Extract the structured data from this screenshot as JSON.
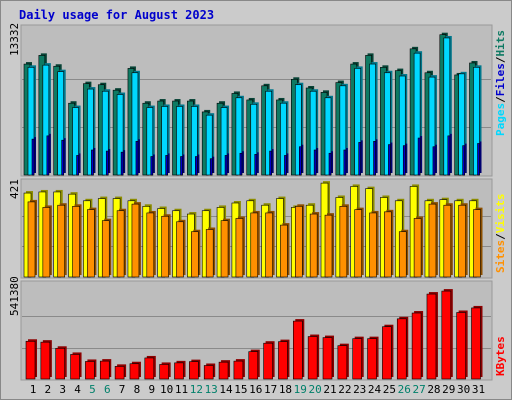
{
  "title": "Daily usage for August 2023",
  "colors": {
    "background": "#cbcbcb",
    "panel": "#bdbdbd",
    "title": "#0000cc",
    "hits": "#0e7a63",
    "files": "#00d8ff",
    "pages": "#0000cc",
    "visits": "#ffff00",
    "sites": "#ff9000",
    "kbytes": "#ff0000",
    "weekend_label": "#00806a",
    "weekday_label": "#000000"
  },
  "chart_data": [
    {
      "type": "bar",
      "panel": "hits-files-pages",
      "ytick_label": "13332",
      "ylim": [
        0,
        13332
      ],
      "legend": [
        "Pages",
        "/",
        "Files",
        "/",
        "Hits"
      ],
      "categories": [
        "1",
        "2",
        "3",
        "4",
        "5",
        "6",
        "7",
        "8",
        "9",
        "10",
        "11",
        "12",
        "13",
        "14",
        "15",
        "16",
        "17",
        "18",
        "19",
        "20",
        "21",
        "22",
        "23",
        "24",
        "25",
        "26",
        "27",
        "28",
        "29",
        "30",
        "31"
      ],
      "weekend_days": [
        5,
        6,
        12,
        13,
        19,
        20,
        26,
        27
      ],
      "series": [
        {
          "name": "Hits",
          "values": [
            10200,
            11000,
            10000,
            6600,
            8400,
            8300,
            7800,
            9800,
            6600,
            6800,
            6800,
            6800,
            5800,
            6600,
            7500,
            6900,
            8200,
            6900,
            8800,
            8000,
            7600,
            8500,
            10200,
            11000,
            9900,
            9600,
            11600,
            9400,
            12900,
            9200,
            10300
          ]
        },
        {
          "name": "Files",
          "values": [
            9900,
            10100,
            9500,
            6200,
            7900,
            7700,
            7400,
            9400,
            6200,
            6300,
            6300,
            6300,
            5500,
            6200,
            7100,
            6500,
            7700,
            6600,
            8300,
            7700,
            7100,
            8200,
            9800,
            10200,
            9400,
            9100,
            11200,
            9000,
            12600,
            9300,
            9900
          ]
        },
        {
          "name": "Pages",
          "values": [
            3300,
            3600,
            3200,
            1800,
            2300,
            2200,
            2100,
            3100,
            1700,
            1800,
            1700,
            1700,
            1500,
            1800,
            2000,
            1900,
            2200,
            1800,
            2600,
            2300,
            2000,
            2300,
            3000,
            3100,
            2800,
            2700,
            3400,
            2600,
            3600,
            2700,
            2900
          ]
        }
      ]
    },
    {
      "type": "bar",
      "panel": "visits-sites",
      "ytick_label": "421",
      "ylim": [
        0,
        421
      ],
      "legend": [
        "Sites",
        "/",
        "Visits"
      ],
      "series": [
        {
          "name": "Visits",
          "values": [
            380,
            385,
            385,
            375,
            345,
            355,
            355,
            345,
            320,
            310,
            300,
            285,
            300,
            315,
            335,
            345,
            325,
            355,
            315,
            325,
            425,
            360,
            410,
            400,
            360,
            345,
            410,
            345,
            350,
            345,
            345
          ]
        },
        {
          "name": "Sites",
          "values": [
            340,
            315,
            325,
            320,
            305,
            255,
            300,
            330,
            290,
            275,
            250,
            205,
            215,
            255,
            265,
            290,
            290,
            235,
            320,
            285,
            280,
            320,
            305,
            290,
            295,
            205,
            265,
            330,
            325,
            325,
            305
          ]
        }
      ]
    },
    {
      "type": "bar",
      "panel": "kbytes",
      "ytick_label": "541380",
      "ylim": [
        0,
        541380
      ],
      "legend": [
        "KBytes"
      ],
      "series": [
        {
          "name": "KBytes",
          "values": [
            215000,
            210000,
            175000,
            140000,
            100000,
            102000,
            72000,
            87000,
            120000,
            83000,
            92000,
            99000,
            77000,
            96000,
            102000,
            156000,
            204000,
            213000,
            330000,
            242000,
            236000,
            190000,
            230000,
            230000,
            298000,
            343000,
            376000,
            484000,
            501000,
            379000,
            405000
          ]
        }
      ]
    }
  ]
}
